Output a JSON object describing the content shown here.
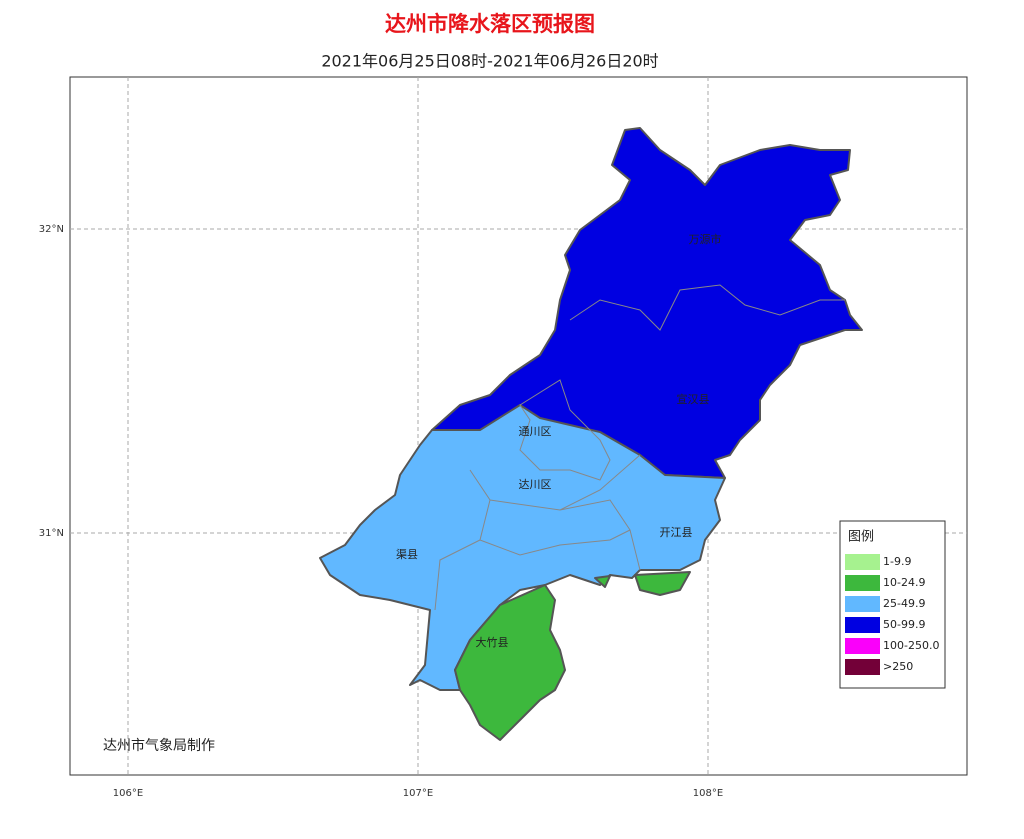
{
  "header": {
    "title": "达州市降水落区预报图",
    "subtitle": "2021年06月25日08时-2021年06月26日20时"
  },
  "axes": {
    "lon_ticks": [
      {
        "value": 106,
        "label": "106°E"
      },
      {
        "value": 107,
        "label": "107°E"
      },
      {
        "value": 108,
        "label": "108°E"
      }
    ],
    "lat_ticks": [
      {
        "value": 31,
        "label": "31°N"
      },
      {
        "value": 32,
        "label": "32°N"
      }
    ]
  },
  "places": [
    "万源市",
    "宣汉县",
    "通川区",
    "达川区",
    "开江县",
    "渠县",
    "大竹县"
  ],
  "legend": {
    "title": "图例",
    "items": [
      {
        "label": "1-9.9",
        "color": "#a6f28f"
      },
      {
        "label": "10-24.9",
        "color": "#3db83d"
      },
      {
        "label": "25-49.9",
        "color": "#61b8ff"
      },
      {
        "label": "50-99.9",
        "color": "#0000e1"
      },
      {
        "label": "100-250.0",
        "color": "#fa00fa"
      },
      {
        "label": ">250",
        "color": "#730038"
      }
    ]
  },
  "credit": "达州市气象局制作"
}
